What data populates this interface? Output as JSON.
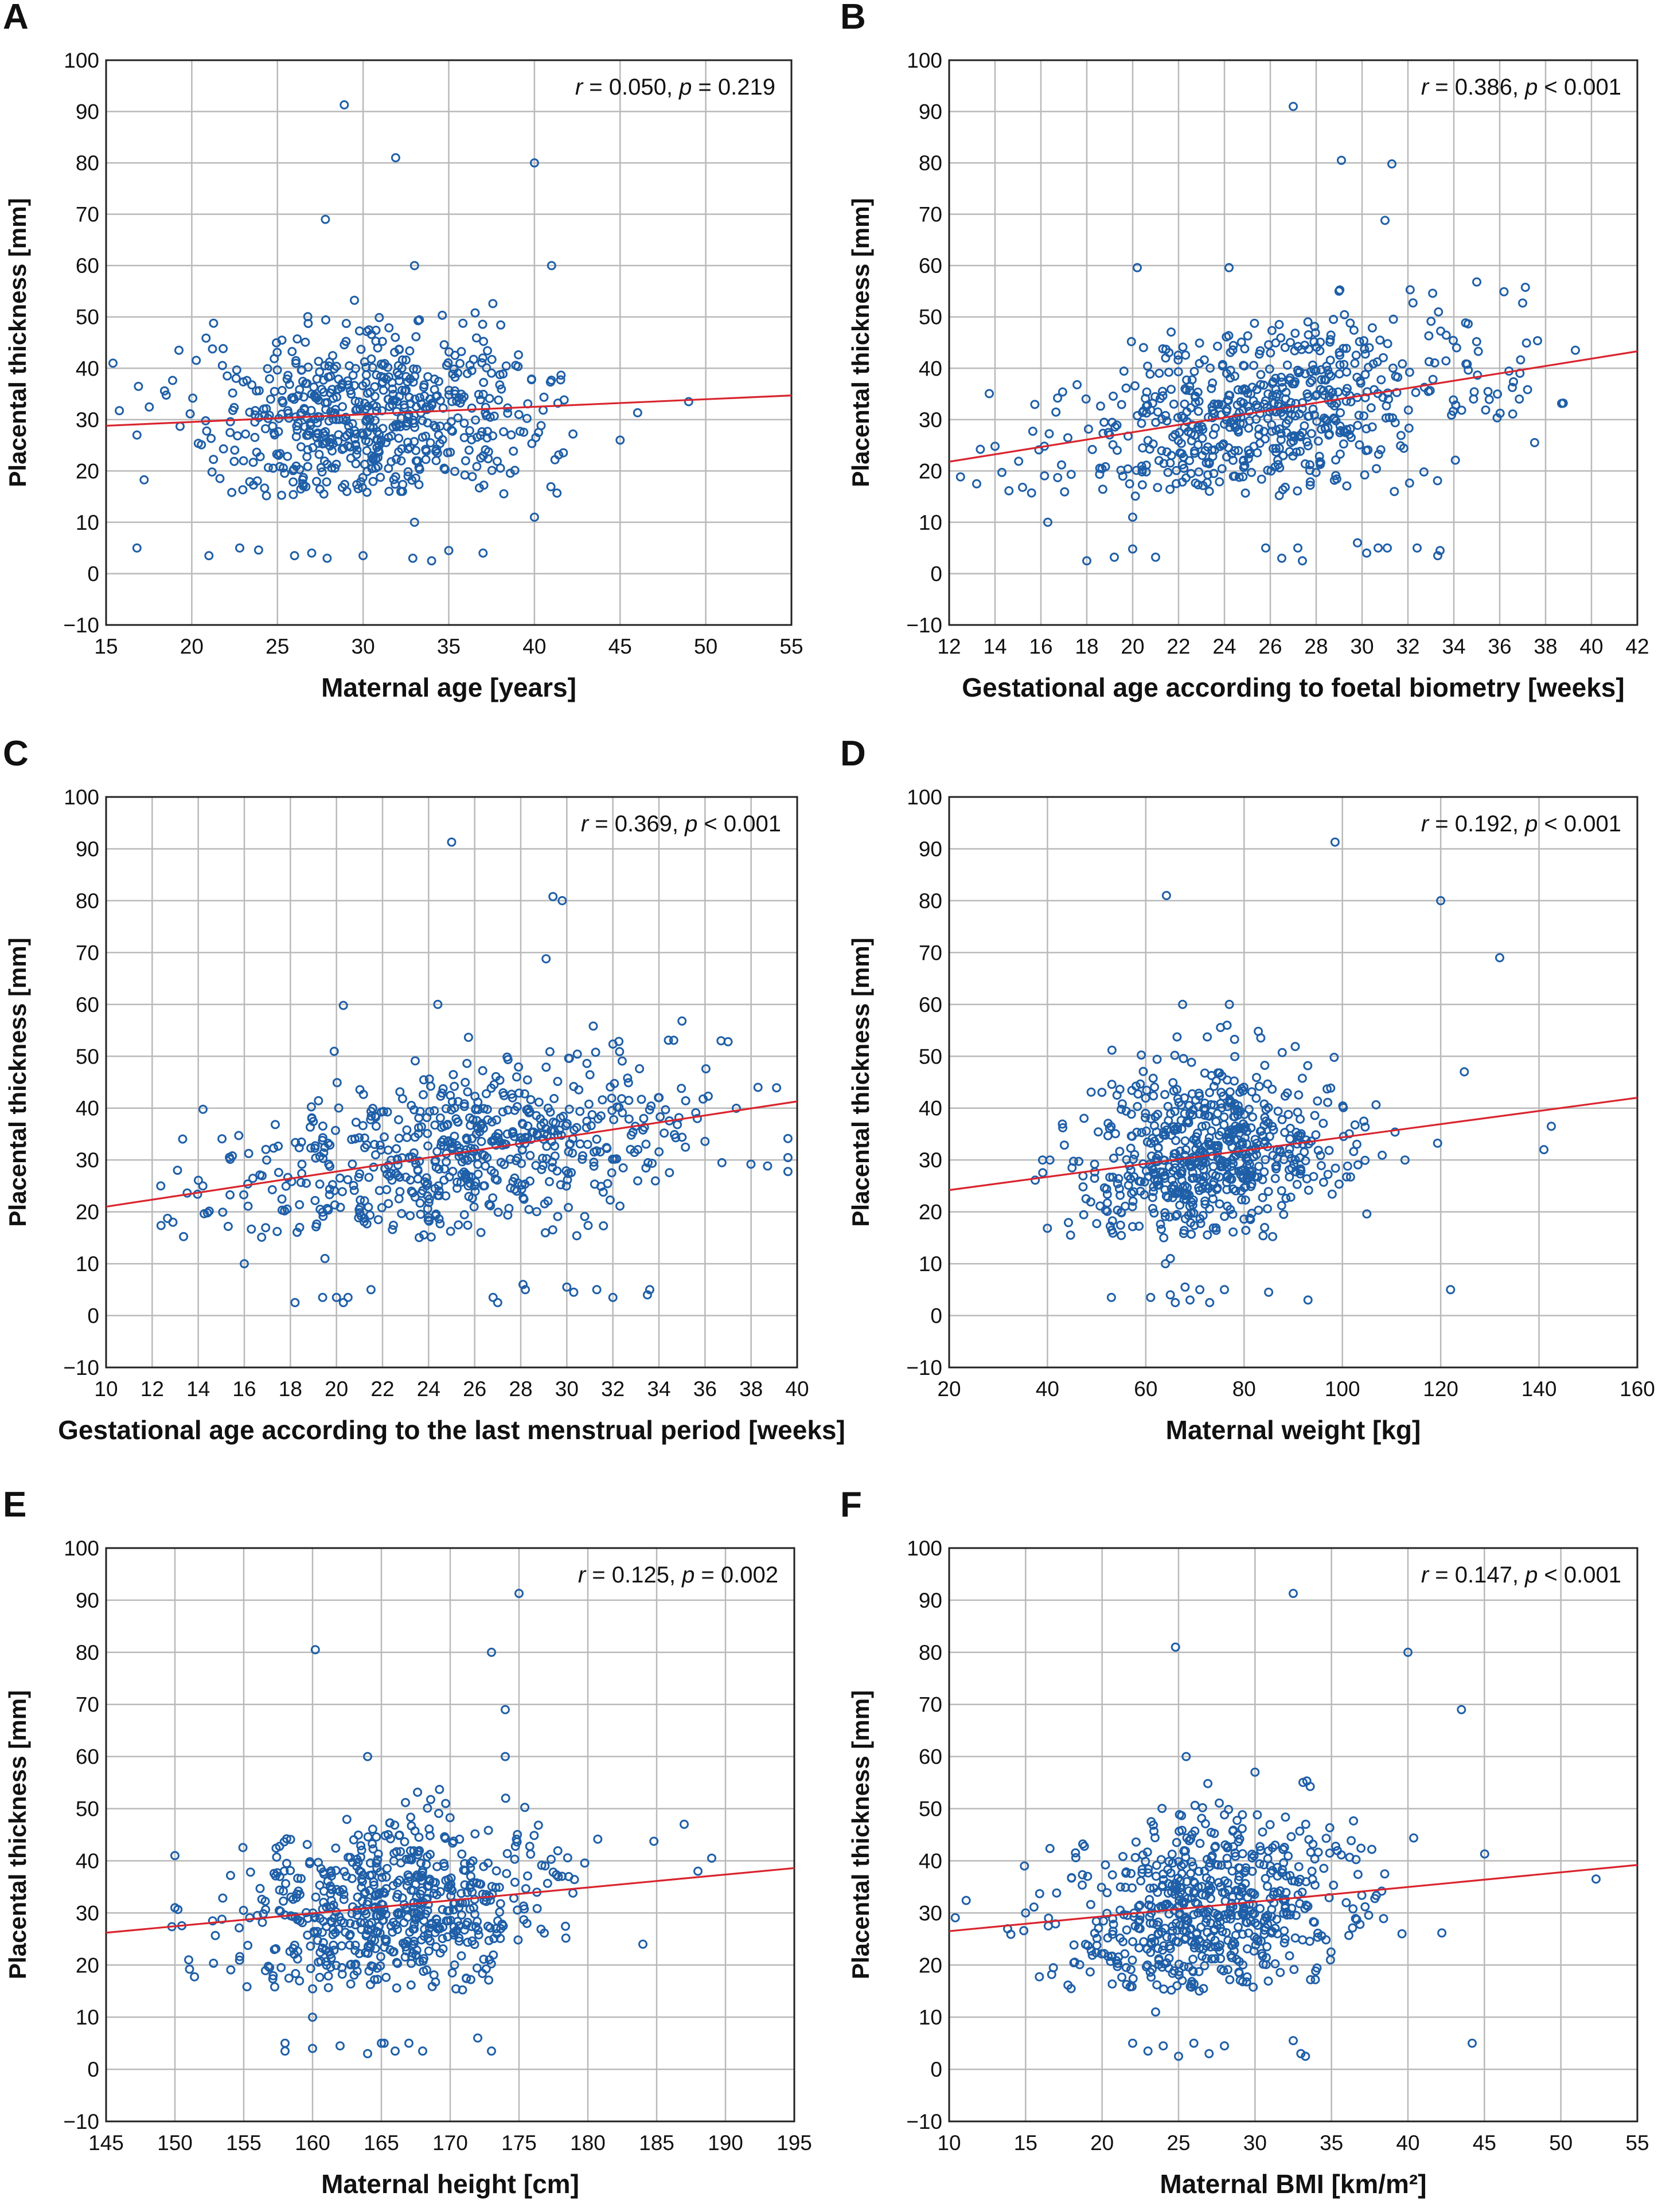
{
  "colors": {
    "points": "#1f5fa8",
    "fit_line": "#d9252e",
    "grid": "#b9b9b9",
    "frame": "#222222"
  },
  "chart_data": [
    {
      "type": "scatter",
      "panel": "A",
      "xlabel": "Maternal age [years]",
      "ylabel": "Placental thickness [mm]",
      "xlim": [
        15,
        55
      ],
      "ylim": [
        -10,
        100
      ],
      "xticks": [
        15,
        20,
        25,
        30,
        35,
        40,
        45,
        50,
        55
      ],
      "yticks": [
        -10,
        0,
        10,
        20,
        30,
        40,
        50,
        60,
        70,
        80,
        90,
        100
      ],
      "annotation": {
        "r_label": "r",
        "r_value": " = 0.050, ",
        "p_label": "p",
        "p_value": " = 0.219"
      },
      "fit_line": {
        "x": [
          15,
          55
        ],
        "y": [
          28.8,
          34.7
        ]
      },
      "point_summary": {
        "count": 620,
        "x_mean": 30.5,
        "x_sd": 5.0,
        "y_mean": 30.5,
        "y_sd": 9.5
      },
      "outliers": [
        [
          28.9,
          91.3
        ],
        [
          31.9,
          81
        ],
        [
          40,
          80
        ],
        [
          27.8,
          69
        ],
        [
          41,
          60
        ],
        [
          33,
          60
        ],
        [
          49,
          33.5
        ],
        [
          45,
          26
        ],
        [
          16.8,
          5
        ],
        [
          16.8,
          27
        ],
        [
          21,
          3.5
        ],
        [
          22.8,
          5
        ],
        [
          23.9,
          4.6
        ],
        [
          26,
          3.5
        ],
        [
          27,
          4
        ],
        [
          27.9,
          3
        ],
        [
          30,
          3.5
        ],
        [
          32.9,
          3
        ],
        [
          34,
          2.5
        ],
        [
          35,
          4.5
        ],
        [
          37,
          4
        ],
        [
          40,
          11
        ],
        [
          33,
          10
        ]
      ]
    },
    {
      "type": "scatter",
      "panel": "B",
      "xlabel": "Gestational age according to foetal biometry [weeks]",
      "ylabel": "Placental thickness [mm]",
      "xlim": [
        12,
        42
      ],
      "ylim": [
        -10,
        100
      ],
      "xticks": [
        12,
        14,
        16,
        18,
        20,
        22,
        24,
        26,
        28,
        30,
        32,
        34,
        36,
        38,
        40,
        42
      ],
      "yticks": [
        -10,
        0,
        10,
        20,
        30,
        40,
        50,
        60,
        70,
        80,
        90,
        100
      ],
      "annotation": {
        "r_label": "r",
        "r_value": " = 0.386, ",
        "p_label": "p",
        "p_value": " < 0.001"
      },
      "fit_line": {
        "x": [
          12,
          42
        ],
        "y": [
          21.8,
          43.3
        ]
      },
      "point_summary": {
        "count": 620,
        "x_mean": 26.0,
        "x_sd": 4.6,
        "y_mean": 31.5,
        "y_sd": 9.0
      },
      "outliers": [
        [
          27,
          91
        ],
        [
          29.1,
          80.5
        ],
        [
          31.3,
          79.8
        ],
        [
          31,
          68.8
        ],
        [
          20.2,
          59.6
        ],
        [
          24.2,
          59.6
        ],
        [
          35,
          56.8
        ],
        [
          37,
          52.7
        ],
        [
          13.2,
          17.5
        ],
        [
          14,
          24.8
        ],
        [
          14.3,
          19.7
        ],
        [
          15.2,
          16.8
        ],
        [
          16.3,
          10
        ],
        [
          18,
          2.5
        ],
        [
          19.2,
          3.2
        ],
        [
          20,
          4.8
        ],
        [
          21,
          3.2
        ],
        [
          25.8,
          5
        ],
        [
          26.5,
          3
        ],
        [
          27.2,
          5
        ],
        [
          27.4,
          2.5
        ],
        [
          29.8,
          6
        ],
        [
          30.2,
          4
        ],
        [
          30.7,
          5
        ],
        [
          31.1,
          5
        ],
        [
          32.4,
          5
        ],
        [
          33.3,
          3.5
        ],
        [
          33.4,
          4.5
        ],
        [
          20,
          11
        ],
        [
          39.3,
          43.5
        ]
      ]
    },
    {
      "type": "scatter",
      "panel": "C",
      "xlabel": "Gestational age according to the last menstrual period [weeks]",
      "ylabel": "Placental thickness [mm]",
      "xlim": [
        10,
        40
      ],
      "ylim": [
        -10,
        100
      ],
      "xticks": [
        10,
        12,
        14,
        16,
        18,
        20,
        22,
        24,
        26,
        28,
        30,
        32,
        34,
        36,
        38,
        40
      ],
      "yticks": [
        -10,
        0,
        10,
        20,
        30,
        40,
        50,
        60,
        70,
        80,
        90,
        100
      ],
      "annotation": {
        "r_label": "r",
        "r_value": " = 0.369, ",
        "p_label": "p",
        "p_value": " < 0.001"
      },
      "fit_line": {
        "x": [
          10,
          40
        ],
        "y": [
          21.0,
          41.3
        ]
      },
      "point_summary": {
        "count": 620,
        "x_mean": 25.5,
        "x_sd": 5.0,
        "y_mean": 31.0,
        "y_sd": 9.0
      },
      "outliers": [
        [
          25,
          91.3
        ],
        [
          29.4,
          80.8
        ],
        [
          29.8,
          80
        ],
        [
          29.1,
          68.8
        ],
        [
          20.3,
          59.8
        ],
        [
          24.4,
          60
        ],
        [
          35,
          56.8
        ],
        [
          37,
          52.8
        ],
        [
          12.9,
          18
        ],
        [
          14.2,
          25
        ],
        [
          14.4,
          19.8
        ],
        [
          15.3,
          17.2
        ],
        [
          16,
          10
        ],
        [
          18.2,
          2.5
        ],
        [
          19.4,
          3.5
        ],
        [
          20,
          3.5
        ],
        [
          20.3,
          2.5
        ],
        [
          20.5,
          3.5
        ],
        [
          21.5,
          5
        ],
        [
          26.8,
          3.5
        ],
        [
          27,
          2.5
        ],
        [
          28.1,
          6
        ],
        [
          28.2,
          5
        ],
        [
          30,
          5.5
        ],
        [
          30.3,
          4.5
        ],
        [
          31.3,
          5
        ],
        [
          32,
          3.5
        ],
        [
          33.5,
          4
        ],
        [
          33.6,
          5
        ],
        [
          19.5,
          11
        ],
        [
          38.3,
          44
        ]
      ]
    },
    {
      "type": "scatter",
      "panel": "D",
      "xlabel": "Maternal weight [kg]",
      "ylabel": "Placental thickness [mm]",
      "xlim": [
        20,
        160
      ],
      "ylim": [
        -10,
        100
      ],
      "xticks": [
        20,
        40,
        60,
        80,
        100,
        120,
        140,
        160
      ],
      "yticks": [
        -10,
        0,
        10,
        20,
        30,
        40,
        50,
        60,
        70,
        80,
        90,
        100
      ],
      "annotation": {
        "r_label": "r",
        "r_value": " = 0.192, ",
        "p_label": "p",
        "p_value": " < 0.001"
      },
      "fit_line": {
        "x": [
          20,
          160
        ],
        "y": [
          24.2,
          42.0
        ]
      },
      "point_summary": {
        "count": 620,
        "x_mean": 73.0,
        "x_sd": 13.0,
        "y_mean": 31.5,
        "y_sd": 9.5
      },
      "outliers": [
        [
          98.5,
          91.3
        ],
        [
          64.2,
          81
        ],
        [
          120,
          80
        ],
        [
          132,
          69
        ],
        [
          67.5,
          60
        ],
        [
          77,
          60
        ],
        [
          124.8,
          47
        ],
        [
          141,
          32
        ],
        [
          142.5,
          36.5
        ],
        [
          39,
          30
        ],
        [
          40.5,
          30
        ],
        [
          45,
          28.5
        ],
        [
          53,
          3.5
        ],
        [
          61,
          3.5
        ],
        [
          64,
          10
        ],
        [
          65,
          4
        ],
        [
          66,
          2.5
        ],
        [
          68,
          5.5
        ],
        [
          69,
          3
        ],
        [
          71,
          5
        ],
        [
          73,
          2.5
        ],
        [
          76,
          5
        ],
        [
          85,
          4.5
        ],
        [
          93,
          3
        ],
        [
          122,
          5
        ],
        [
          65,
          11
        ]
      ]
    },
    {
      "type": "scatter",
      "panel": "E",
      "xlabel": "Maternal height [cm]",
      "ylabel": "Placental thickness [mm]",
      "xlim": [
        145,
        195
      ],
      "ylim": [
        -10,
        100
      ],
      "xticks": [
        145,
        150,
        155,
        160,
        165,
        170,
        175,
        180,
        185,
        190,
        195
      ],
      "yticks": [
        -10,
        0,
        10,
        20,
        30,
        40,
        50,
        60,
        70,
        80,
        90,
        100
      ],
      "annotation": {
        "r_label": "r",
        "r_value": " = 0.125, ",
        "p_label": "p",
        "p_value": " = 0.002"
      },
      "fit_line": {
        "x": [
          145,
          195
        ],
        "y": [
          26.2,
          38.6
        ]
      },
      "point_summary": {
        "count": 620,
        "x_mean": 166.0,
        "x_sd": 5.6,
        "y_mean": 31.0,
        "y_sd": 9.5
      },
      "outliers": [
        [
          175,
          91.3
        ],
        [
          160.2,
          80.5
        ],
        [
          173,
          80
        ],
        [
          174,
          69
        ],
        [
          164,
          60
        ],
        [
          174,
          60
        ],
        [
          187,
          47
        ],
        [
          188,
          38
        ],
        [
          189,
          40.5
        ],
        [
          184,
          24
        ],
        [
          150,
          41
        ],
        [
          150,
          31
        ],
        [
          151,
          21
        ],
        [
          158,
          5
        ],
        [
          158,
          3.5
        ],
        [
          160,
          4
        ],
        [
          162,
          4.5
        ],
        [
          164,
          3
        ],
        [
          165,
          5
        ],
        [
          165.2,
          5
        ],
        [
          166,
          3.5
        ],
        [
          167,
          5
        ],
        [
          168,
          3.5
        ],
        [
          172,
          6
        ],
        [
          173,
          3.5
        ],
        [
          160,
          10
        ]
      ]
    },
    {
      "type": "scatter",
      "panel": "F",
      "xlabel": "Maternal BMI [km/m²]",
      "ylabel": "Placental thickness [mm]",
      "xlim": [
        10,
        55
      ],
      "ylim": [
        -10,
        100
      ],
      "xticks": [
        10,
        15,
        20,
        25,
        30,
        35,
        40,
        45,
        50,
        55
      ],
      "yticks": [
        -10,
        0,
        10,
        20,
        30,
        40,
        50,
        60,
        70,
        80,
        90,
        100
      ],
      "annotation": {
        "r_label": "r",
        "r_value": " = 0.147, ",
        "p_label": "p",
        "p_value": " < 0.001"
      },
      "fit_line": {
        "x": [
          10,
          55
        ],
        "y": [
          26.5,
          39.2
        ]
      },
      "point_summary": {
        "count": 620,
        "x_mean": 26.8,
        "x_sd": 4.8,
        "y_mean": 31.0,
        "y_sd": 9.5
      },
      "outliers": [
        [
          32.5,
          91.3
        ],
        [
          24.8,
          81
        ],
        [
          40,
          80
        ],
        [
          43.5,
          69
        ],
        [
          25.5,
          60
        ],
        [
          30,
          57
        ],
        [
          52.3,
          36.5
        ],
        [
          44.2,
          5
        ],
        [
          15,
          30
        ],
        [
          16.5,
          29
        ],
        [
          22,
          5
        ],
        [
          23,
          3.5
        ],
        [
          24,
          4.5
        ],
        [
          25,
          2.5
        ],
        [
          26,
          5
        ],
        [
          27,
          3
        ],
        [
          28,
          4.5
        ],
        [
          32.5,
          5.5
        ],
        [
          33,
          3
        ],
        [
          33.3,
          2.5
        ],
        [
          23.5,
          11
        ]
      ]
    }
  ]
}
